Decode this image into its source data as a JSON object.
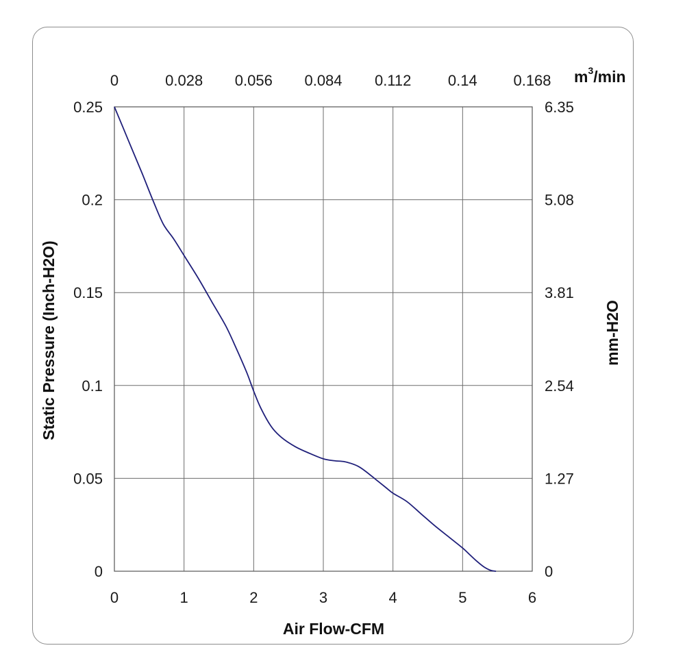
{
  "chart_data": {
    "type": "line",
    "title": "",
    "xlabel": "Air Flow-CFM",
    "ylabel": "Static Pressure (Inch-H2O)",
    "y2label": "mm-H2O",
    "x2unit_base": "m",
    "x2unit_sup": "3",
    "x2unit_tail": "/min",
    "xlim": [
      0,
      6
    ],
    "ylim": [
      0,
      0.25
    ],
    "x_ticks": [
      "0",
      "1",
      "2",
      "3",
      "4",
      "5",
      "6"
    ],
    "y_ticks": [
      "0",
      "0.05",
      "0.1",
      "0.15",
      "0.2",
      "0.25"
    ],
    "x2_ticks": [
      "0",
      "0.028",
      "0.056",
      "0.084",
      "0.112",
      "0.14",
      "0.168"
    ],
    "y2_ticks": [
      "0",
      "1.27",
      "2.54",
      "3.81",
      "5.08",
      "6.35"
    ],
    "grid": true,
    "line_color": "#1f1f7a",
    "series": [
      {
        "x": [
          0,
          0.2,
          0.4,
          0.55,
          0.7,
          0.85,
          1.0,
          1.2,
          1.4,
          1.6,
          1.75,
          1.9,
          2.0,
          2.1,
          2.25,
          2.4,
          2.6,
          2.8,
          3.0,
          3.15,
          3.3,
          3.4,
          3.5,
          3.6,
          3.75,
          3.9,
          4.0,
          4.2,
          4.4,
          4.6,
          4.8,
          5.0,
          5.1,
          5.2,
          5.3,
          5.4,
          5.48
        ],
        "y": [
          0.25,
          0.232,
          0.214,
          0.2,
          0.187,
          0.179,
          0.17,
          0.158,
          0.145,
          0.132,
          0.12,
          0.107,
          0.097,
          0.088,
          0.078,
          0.072,
          0.067,
          0.0635,
          0.0605,
          0.0595,
          0.059,
          0.058,
          0.0565,
          0.054,
          0.0495,
          0.045,
          0.042,
          0.0375,
          0.031,
          0.0245,
          0.0185,
          0.0125,
          0.009,
          0.0055,
          0.0025,
          0.0005,
          0
        ]
      }
    ]
  }
}
